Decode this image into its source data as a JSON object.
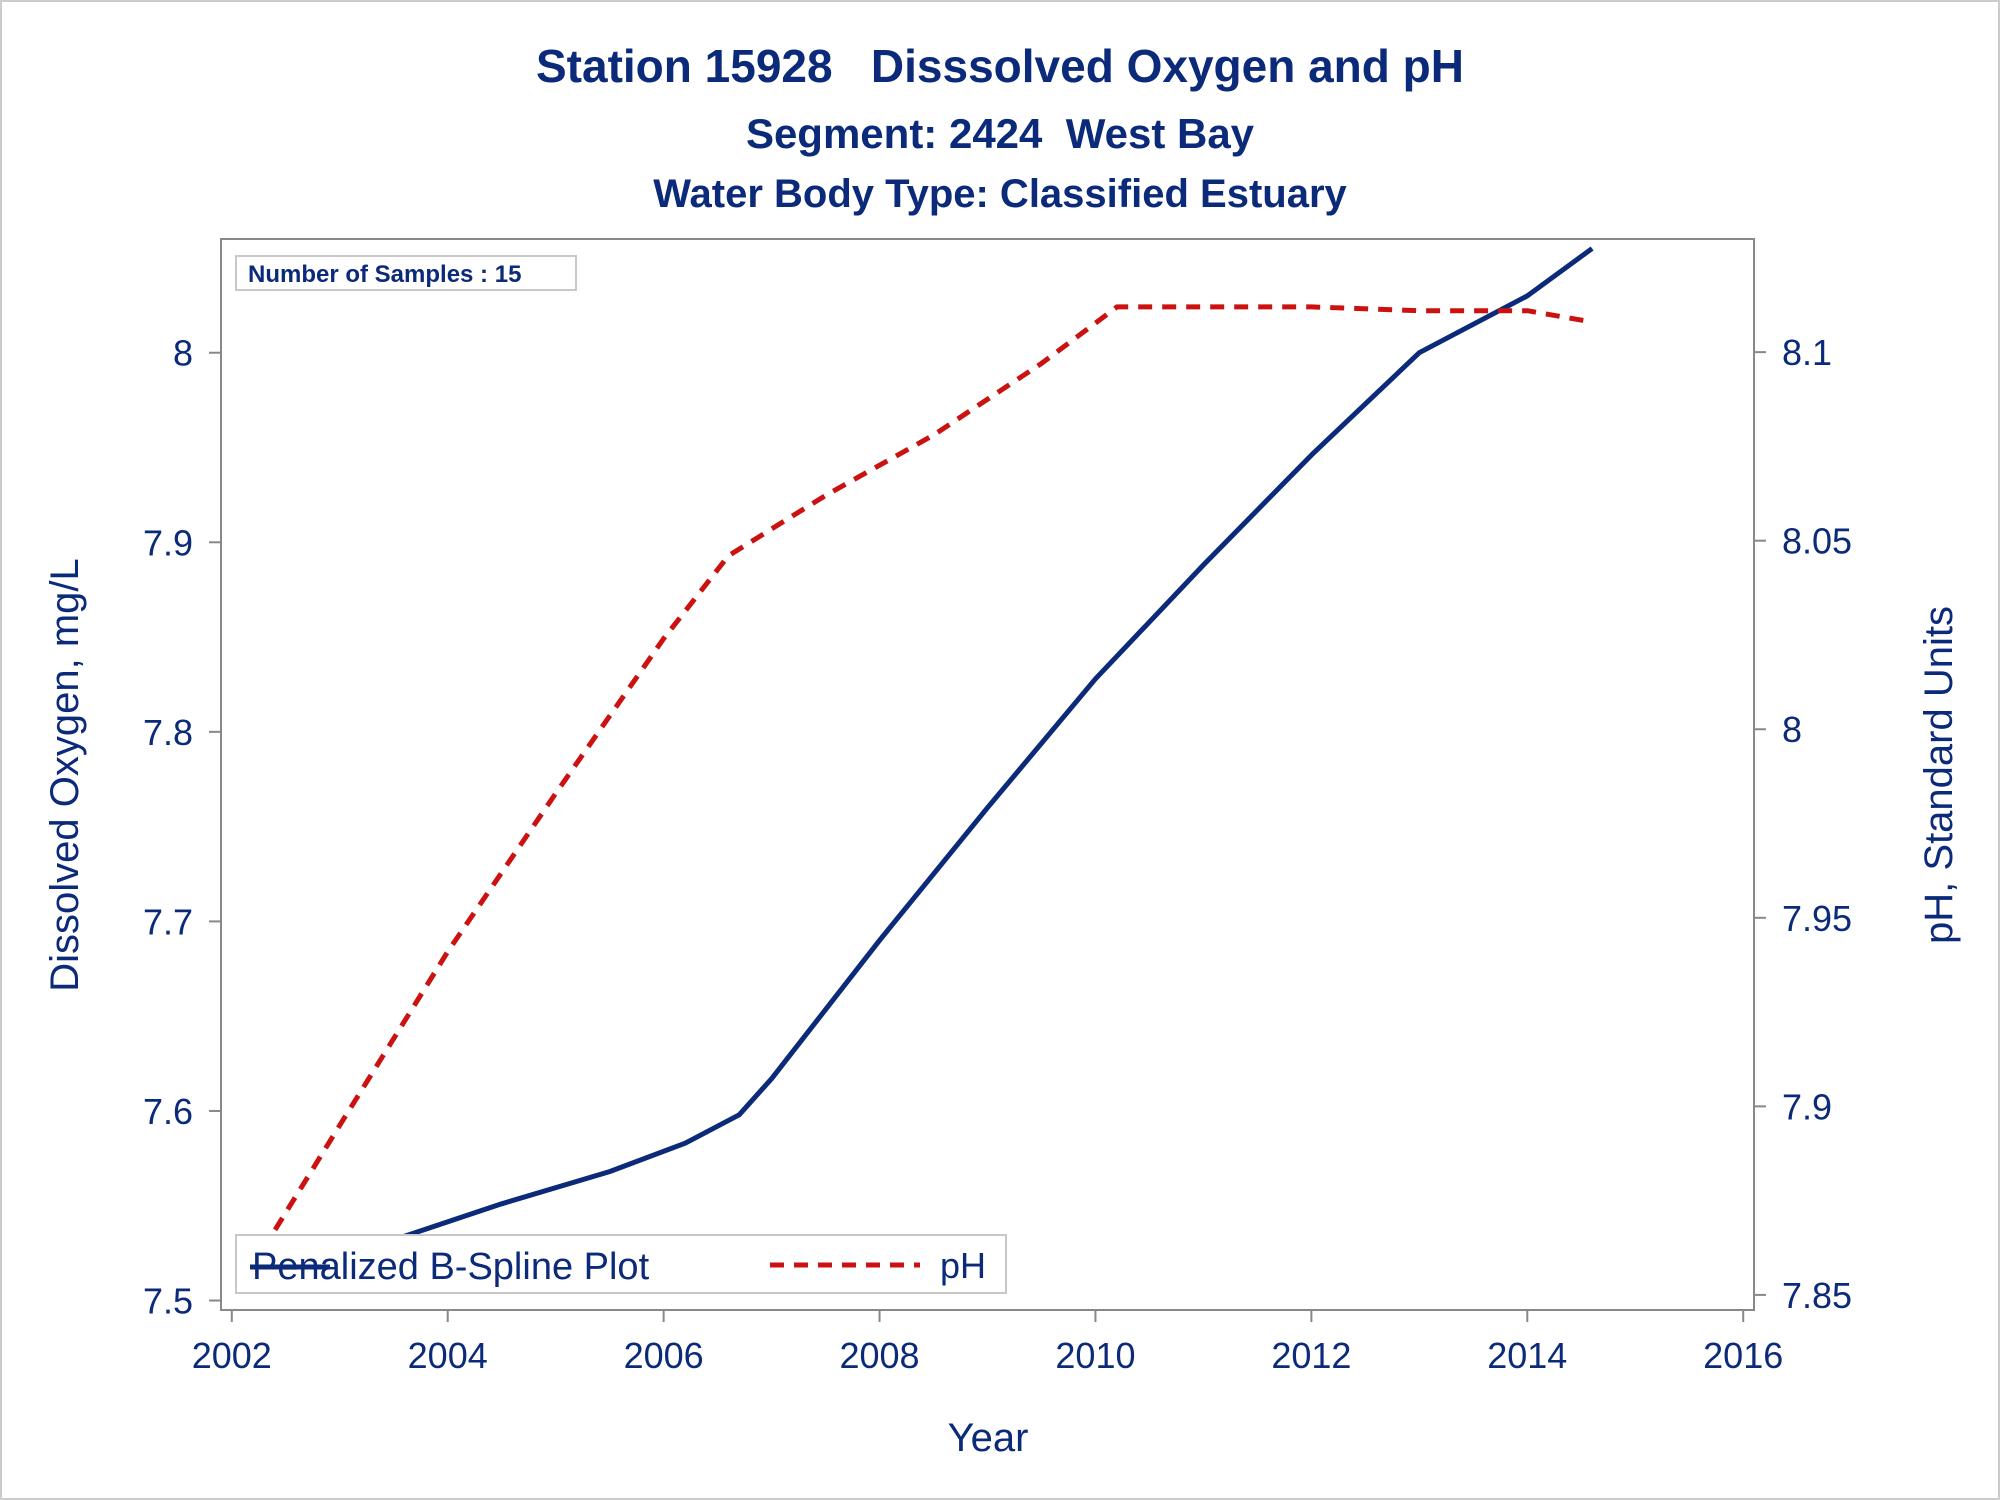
{
  "titles": {
    "line1": "Station 15928   Disssolved Oxygen and pH",
    "line2": "Segment: 2424  West Bay",
    "line3": "Water Body Type: Classified Estuary"
  },
  "inset": {
    "samples_label": "Number of Samples : 15"
  },
  "legend": {
    "series_do_label": "Penalized B-Spline Plot",
    "series_ph_label": "pH"
  },
  "colors": {
    "do": "#0c2a7a",
    "ph": "#cc1111",
    "text": "#0c2a7a",
    "frame": "#888888"
  },
  "chart_data": {
    "type": "line",
    "xlabel": "Year",
    "ylabel": "Dissolved Oxygen, mg/L",
    "y2label": "pH, Standard Units",
    "xlim": [
      2001.9,
      2016.1
    ],
    "ylim": [
      7.495,
      8.06
    ],
    "y2lim": [
      7.846,
      8.13
    ],
    "xticks": [
      2002,
      2004,
      2006,
      2008,
      2010,
      2012,
      2014,
      2016
    ],
    "yticks": [
      7.5,
      7.6,
      7.7,
      7.8,
      7.9,
      8.0
    ],
    "ytick_labels": [
      "7.5",
      "7.6",
      "7.7",
      "7.8",
      "7.9",
      "8"
    ],
    "y2ticks": [
      7.85,
      7.9,
      7.95,
      8.0,
      8.05,
      8.1
    ],
    "y2tick_labels": [
      "7.85",
      "7.9",
      "7.95",
      "8",
      "8.05",
      "8.1"
    ],
    "grid": false,
    "legend_position": "bottom-left, inside",
    "series": [
      {
        "name": "Penalized B-Spline Plot",
        "axis": "left",
        "style": "solid",
        "x": [
          2002.1,
          2002.6,
          2003.5,
          2004.5,
          2005.5,
          2006.2,
          2006.7,
          2007.0,
          2008.0,
          2009.0,
          2010.0,
          2011.0,
          2012.0,
          2013.0,
          2014.0,
          2014.6
        ],
        "y": [
          7.512,
          7.512,
          7.532,
          7.551,
          7.568,
          7.583,
          7.598,
          7.617,
          7.69,
          7.76,
          7.828,
          7.888,
          7.946,
          8.0,
          8.03,
          8.055
        ]
      },
      {
        "name": "pH",
        "axis": "right",
        "style": "dashed",
        "x": [
          2002.05,
          2003.0,
          2004.0,
          2005.0,
          2006.0,
          2006.6,
          2007.5,
          2008.5,
          2009.5,
          2010.2,
          2011.0,
          2012.0,
          2013.0,
          2014.0,
          2014.6
        ],
        "y": [
          7.851,
          7.895,
          7.941,
          7.983,
          8.024,
          8.046,
          8.062,
          8.078,
          8.097,
          8.112,
          8.112,
          8.112,
          8.111,
          8.111,
          8.108
        ]
      }
    ]
  }
}
